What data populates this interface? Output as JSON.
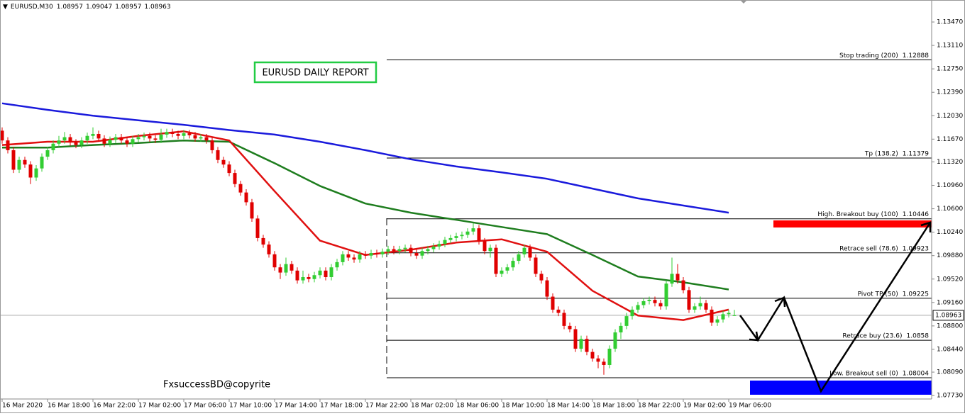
{
  "chart_data": {
    "type": "candlestick",
    "symbol": "EURUSD,M30",
    "annotations": [
      "EURUSD DAILY REPORT",
      "FxsuccessBD@copyrite"
    ],
    "up_color": "#32cd32",
    "down_color": "#e00000",
    "xlim": [
      -0.375,
      163.75
    ],
    "ylim": [
      1.07677,
      1.13808
    ],
    "yticks": [
      {
        "value": 1.1347,
        "label": "1.13470"
      },
      {
        "value": 1.1311,
        "label": "1.13110"
      },
      {
        "value": 1.1275,
        "label": "1.12750"
      },
      {
        "value": 1.1239,
        "label": "1.12390"
      },
      {
        "value": 1.1203,
        "label": "1.12030"
      },
      {
        "value": 1.1167,
        "label": "1.11670"
      },
      {
        "value": 1.1132,
        "label": "1.11320"
      },
      {
        "value": 1.1096,
        "label": "1.10960"
      },
      {
        "value": 1.106,
        "label": "1.10600"
      },
      {
        "value": 1.1024,
        "label": "1.10240"
      },
      {
        "value": 1.0988,
        "label": "1.09880"
      },
      {
        "value": 1.0952,
        "label": "1.09520"
      },
      {
        "value": 1.0916,
        "label": "1.09160"
      },
      {
        "value": 1.088,
        "label": "1.08800"
      },
      {
        "value": 1.0844,
        "label": "1.08440"
      },
      {
        "value": 1.0809,
        "label": "1.08090"
      },
      {
        "value": 1.0773,
        "label": "1.07730"
      }
    ],
    "xticks": [
      {
        "value": 0,
        "label": "16 Mar 2020"
      },
      {
        "value": 8,
        "label": "16 Mar 18:00"
      },
      {
        "value": 16,
        "label": "16 Mar 22:00"
      },
      {
        "value": 24,
        "label": "17 Mar 02:00"
      },
      {
        "value": 32,
        "label": "17 Mar 06:00"
      },
      {
        "value": 40,
        "label": "17 Mar 10:00"
      },
      {
        "value": 48,
        "label": "17 Mar 14:00"
      },
      {
        "value": 56,
        "label": "17 Mar 18:00"
      },
      {
        "value": 64,
        "label": "17 Mar 22:00"
      },
      {
        "value": 72,
        "label": "18 Mar 02:00"
      },
      {
        "value": 80,
        "label": "18 Mar 06:00"
      },
      {
        "value": 88,
        "label": "18 Mar 10:00"
      },
      {
        "value": 96,
        "label": "18 Mar 14:00"
      },
      {
        "value": 104,
        "label": "18 Mar 18:00"
      },
      {
        "value": 112,
        "label": "18 Mar 22:00"
      },
      {
        "value": 120,
        "label": "19 Mar 02:00"
      },
      {
        "value": 128,
        "label": "19 Mar 06:00"
      }
    ],
    "levels": [
      {
        "label": "Stop trading (200)",
        "value": 1.12888
      },
      {
        "label": "Tp (138.2)",
        "value": 1.11379
      },
      {
        "label": "High. Breakout buy (100)",
        "value": 1.10446
      },
      {
        "label": "Retrace sell (78.6)",
        "value": 1.09923
      },
      {
        "label": "Pivot TP (50)",
        "value": 1.09225
      },
      {
        "label": "Retrace buy (23.6)",
        "value": 1.0858
      },
      {
        "label": "Low. Breakout sell (0)",
        "value": 1.08004
      }
    ],
    "ma_x": [
      0,
      8,
      16,
      24,
      32,
      40,
      48,
      56,
      64,
      72,
      80,
      88,
      96,
      104,
      112,
      120,
      128
    ],
    "moving_averages": [
      {
        "color": "#1a1adc",
        "values": [
          1.1222,
          1.1212,
          1.1203,
          1.1196,
          1.1189,
          1.1181,
          1.1174,
          1.1163,
          1.115,
          1.1136,
          1.1125,
          1.1116,
          1.1106,
          1.1091,
          1.1076,
          1.1065,
          1.1054
        ]
      },
      {
        "color": "#1e7d1e",
        "values": [
          1.1154,
          1.1154,
          1.1158,
          1.1161,
          1.1165,
          1.1163,
          1.113,
          1.1095,
          1.1068,
          1.1054,
          1.1043,
          1.1032,
          1.1021,
          1.0989,
          1.0956,
          1.0947,
          1.0936
        ]
      },
      {
        "color": "#e01010",
        "values": [
          1.1158,
          1.1163,
          1.1163,
          1.1172,
          1.1179,
          1.1165,
          1.1087,
          1.1011,
          1.0989,
          1.0997,
          1.1008,
          1.1013,
          1.0994,
          1.0934,
          1.0896,
          1.0889,
          1.0905
        ]
      }
    ],
    "candles": [
      [
        1.118,
        1.1185,
        1.116,
        1.1165
      ],
      [
        1.1165,
        1.117,
        1.1145,
        1.115
      ],
      [
        1.115,
        1.1155,
        1.1115,
        1.112
      ],
      [
        1.112,
        1.114,
        1.1115,
        1.1135
      ],
      [
        1.1135,
        1.114,
        1.1123,
        1.1128
      ],
      [
        1.1128,
        1.1133,
        1.1098,
        1.1108
      ],
      [
        1.1108,
        1.1127,
        1.1103,
        1.1122
      ],
      [
        1.1122,
        1.1145,
        1.1117,
        1.114
      ],
      [
        1.114,
        1.1155,
        1.1135,
        1.115
      ],
      [
        1.115,
        1.1165,
        1.1145,
        1.116
      ],
      [
        1.116,
        1.1172,
        1.1155,
        1.1165
      ],
      [
        1.1165,
        1.1178,
        1.116,
        1.117
      ],
      [
        1.117,
        1.1175,
        1.1157,
        1.1162
      ],
      [
        1.1162,
        1.1167,
        1.1153,
        1.1158
      ],
      [
        1.1158,
        1.117,
        1.1153,
        1.1165
      ],
      [
        1.1165,
        1.1177,
        1.116,
        1.1172
      ],
      [
        1.1172,
        1.1185,
        1.1167,
        1.1175
      ],
      [
        1.1175,
        1.118,
        1.1163,
        1.1168
      ],
      [
        1.1168,
        1.1173,
        1.1155,
        1.116
      ],
      [
        1.116,
        1.1171,
        1.1155,
        1.1166
      ],
      [
        1.1166,
        1.1175,
        1.1161,
        1.117
      ],
      [
        1.117,
        1.1175,
        1.116,
        1.1165
      ],
      [
        1.1165,
        1.117,
        1.1155,
        1.116
      ],
      [
        1.116,
        1.1172,
        1.1155,
        1.1167
      ],
      [
        1.1167,
        1.1175,
        1.1162,
        1.117
      ],
      [
        1.117,
        1.1177,
        1.1165,
        1.1172
      ],
      [
        1.1172,
        1.1177,
        1.1163,
        1.1168
      ],
      [
        1.1168,
        1.1173,
        1.1161,
        1.1166
      ],
      [
        1.1166,
        1.1183,
        1.1161,
        1.1174
      ],
      [
        1.1174,
        1.1183,
        1.1169,
        1.1178
      ],
      [
        1.1178,
        1.1183,
        1.117,
        1.1175
      ],
      [
        1.1175,
        1.118,
        1.1167,
        1.1172
      ],
      [
        1.1172,
        1.1181,
        1.1167,
        1.1176
      ],
      [
        1.1176,
        1.1181,
        1.1168,
        1.1173
      ],
      [
        1.1173,
        1.1178,
        1.1163,
        1.1168
      ],
      [
        1.1168,
        1.1175,
        1.1163,
        1.117
      ],
      [
        1.117,
        1.1175,
        1.116,
        1.1165
      ],
      [
        1.1165,
        1.117,
        1.1145,
        1.115
      ],
      [
        1.115,
        1.1155,
        1.113,
        1.1135
      ],
      [
        1.1135,
        1.114,
        1.1123,
        1.1128
      ],
      [
        1.1128,
        1.1133,
        1.111,
        1.1115
      ],
      [
        1.1115,
        1.112,
        1.1093,
        1.1098
      ],
      [
        1.1098,
        1.1103,
        1.108,
        1.1085
      ],
      [
        1.1085,
        1.109,
        1.1065,
        1.107
      ],
      [
        1.107,
        1.1075,
        1.104,
        1.1045
      ],
      [
        1.1045,
        1.105,
        1.101,
        1.1015
      ],
      [
        1.1015,
        1.102,
        1.1,
        1.1005
      ],
      [
        1.1005,
        1.101,
        1.0985,
        1.099
      ],
      [
        1.099,
        1.0995,
        1.0965,
        1.097
      ],
      [
        1.097,
        1.0975,
        1.0952,
        1.0962
      ],
      [
        1.0962,
        1.0985,
        1.0957,
        1.0975
      ],
      [
        1.0975,
        1.098,
        1.096,
        1.0965
      ],
      [
        1.0965,
        1.097,
        1.0945,
        1.095
      ],
      [
        1.095,
        1.0965,
        1.0945,
        1.0955
      ],
      [
        1.0955,
        1.096,
        1.0947,
        1.0952
      ],
      [
        1.0952,
        1.0963,
        1.0947,
        1.0958
      ],
      [
        1.0958,
        1.097,
        1.0953,
        1.0965
      ],
      [
        1.0965,
        1.097,
        1.095,
        1.0955
      ],
      [
        1.0955,
        1.0975,
        1.095,
        1.097
      ],
      [
        1.097,
        1.0983,
        1.0965,
        1.0978
      ],
      [
        1.0978,
        1.0995,
        1.0973,
        1.099
      ],
      [
        1.099,
        1.0995,
        1.098,
        1.0985
      ],
      [
        1.0985,
        1.099,
        1.0977,
        1.0982
      ],
      [
        1.0982,
        1.0995,
        1.0977,
        1.099
      ],
      [
        1.099,
        1.0995,
        1.0983,
        1.0988
      ],
      [
        1.0988,
        1.0997,
        1.0983,
        1.0992
      ],
      [
        1.0992,
        1.0997,
        1.0985,
        1.099
      ],
      [
        1.099,
        1.0999,
        1.0985,
        1.0994
      ],
      [
        1.0994,
        1.1003,
        1.0989,
        1.0998
      ],
      [
        1.0998,
        1.1003,
        1.099,
        1.0995
      ],
      [
        1.0995,
        1.1003,
        1.099,
        1.0998
      ],
      [
        1.0998,
        1.1005,
        1.0993,
        1.1
      ],
      [
        1.1,
        1.1005,
        1.0987,
        1.0992
      ],
      [
        1.0992,
        1.0997,
        1.0983,
        1.0988
      ],
      [
        1.0988,
        1.1,
        1.0983,
        1.0995
      ],
      [
        1.0995,
        1.1003,
        1.099,
        1.0998
      ],
      [
        1.0998,
        1.1007,
        1.0993,
        1.1002
      ],
      [
        1.1002,
        1.1011,
        1.0997,
        1.1006
      ],
      [
        1.1006,
        1.1017,
        1.1001,
        1.1012
      ],
      [
        1.1012,
        1.102,
        1.1007,
        1.1015
      ],
      [
        1.1015,
        1.1023,
        1.101,
        1.1018
      ],
      [
        1.1018,
        1.1025,
        1.1013,
        1.102
      ],
      [
        1.102,
        1.103,
        1.1015,
        1.1025
      ],
      [
        1.1025,
        1.1038,
        1.102,
        1.103
      ],
      [
        1.103,
        1.1035,
        1.1005,
        1.101
      ],
      [
        1.101,
        1.1015,
        1.099,
        1.0995
      ],
      [
        1.0995,
        1.1005,
        1.0985,
        1.1
      ],
      [
        1.1,
        1.1005,
        1.0955,
        1.096
      ],
      [
        1.096,
        1.097,
        1.0955,
        1.0965
      ],
      [
        1.0965,
        1.0975,
        1.096,
        1.097
      ],
      [
        1.097,
        1.0985,
        1.0965,
        1.098
      ],
      [
        1.098,
        1.0995,
        1.0975,
        1.099
      ],
      [
        1.099,
        1.1005,
        1.0985,
        1.1
      ],
      [
        1.1,
        1.1005,
        1.098,
        1.0985
      ],
      [
        1.0985,
        1.099,
        1.0955,
        1.096
      ],
      [
        1.096,
        1.0965,
        1.0945,
        1.095
      ],
      [
        1.095,
        1.0955,
        1.092,
        1.0925
      ],
      [
        1.0925,
        1.093,
        1.09,
        1.0905
      ],
      [
        1.0905,
        1.091,
        1.0895,
        1.09
      ],
      [
        1.09,
        1.0905,
        1.0875,
        1.088
      ],
      [
        1.088,
        1.0885,
        1.087,
        1.0875
      ],
      [
        1.0875,
        1.088,
        1.084,
        1.0845
      ],
      [
        1.0845,
        1.0865,
        1.084,
        1.086
      ],
      [
        1.086,
        1.0865,
        1.0835,
        1.084
      ],
      [
        1.084,
        1.0845,
        1.0825,
        1.083
      ],
      [
        1.083,
        1.0835,
        1.0815,
        1.0825
      ],
      [
        1.0825,
        1.083,
        1.0805,
        1.082
      ],
      [
        1.082,
        1.085,
        1.0815,
        1.0845
      ],
      [
        1.0845,
        1.0875,
        1.084,
        1.087
      ],
      [
        1.087,
        1.0885,
        1.086,
        1.088
      ],
      [
        1.088,
        1.09,
        1.0875,
        1.0895
      ],
      [
        1.0895,
        1.091,
        1.089,
        1.0905
      ],
      [
        1.0905,
        1.0917,
        1.09,
        1.0912
      ],
      [
        1.0912,
        1.0923,
        1.0907,
        1.0918
      ],
      [
        1.0918,
        1.0925,
        1.0913,
        1.092
      ],
      [
        1.092,
        1.0925,
        1.091,
        1.0915
      ],
      [
        1.0915,
        1.092,
        1.0905,
        1.091
      ],
      [
        1.091,
        1.095,
        1.0905,
        1.0945
      ],
      [
        1.0945,
        1.0985,
        1.094,
        1.096
      ],
      [
        1.096,
        1.0975,
        1.0945,
        1.095
      ],
      [
        1.095,
        1.0955,
        1.093,
        1.0935
      ],
      [
        1.0935,
        1.094,
        1.09,
        1.0905
      ],
      [
        1.0905,
        1.0915,
        1.09,
        1.091
      ],
      [
        1.091,
        1.0925,
        1.0905,
        1.0915
      ],
      [
        1.0915,
        1.092,
        1.09,
        1.0905
      ],
      [
        1.0905,
        1.091,
        1.088,
        1.0885
      ],
      [
        1.0885,
        1.0895,
        1.088,
        1.089
      ],
      [
        1.089,
        1.0903,
        1.0885,
        1.0898
      ],
      [
        1.0898,
        1.0905,
        1.0893,
        1.09
      ],
      [
        1.08957,
        1.09047,
        1.08957,
        1.08963
      ]
    ]
  }
}
